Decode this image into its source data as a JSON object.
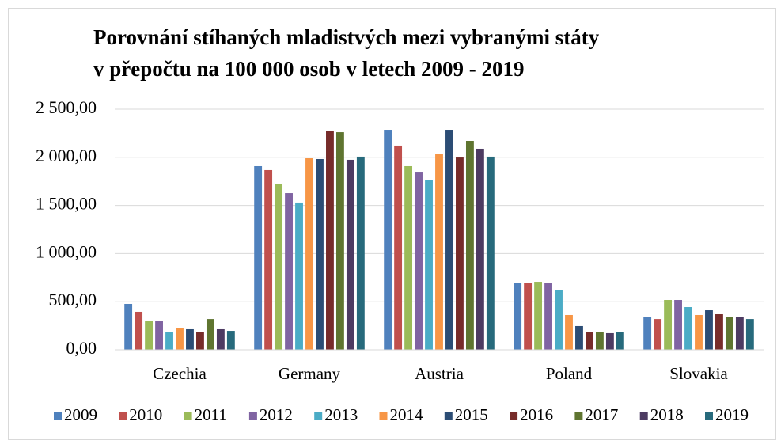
{
  "chart_data": {
    "type": "bar",
    "title": [
      "Porovnání stíhaných mladistvých mezi vybranými státy",
      "v přepočtu na 100 000 osob v letech 2009 - 2019"
    ],
    "categories": [
      "Czechia",
      "Germany",
      "Austria",
      "Poland",
      "Slovakia"
    ],
    "series": [
      {
        "name": "2009",
        "color": "#4f81bd",
        "values": [
          477,
          1908,
          2286,
          699,
          345
        ]
      },
      {
        "name": "2010",
        "color": "#c0504d",
        "values": [
          395,
          1867,
          2122,
          699,
          320
        ]
      },
      {
        "name": "2011",
        "color": "#9bbb59",
        "values": [
          296,
          1727,
          1908,
          707,
          518
        ]
      },
      {
        "name": "2012",
        "color": "#8064a2",
        "values": [
          296,
          1628,
          1850,
          691,
          518
        ]
      },
      {
        "name": "2013",
        "color": "#4bacc6",
        "values": [
          181,
          1530,
          1768,
          617,
          444
        ]
      },
      {
        "name": "2014",
        "color": "#f79646",
        "values": [
          230,
          1990,
          2039,
          362,
          362
        ]
      },
      {
        "name": "2015",
        "color": "#2c4d75",
        "values": [
          214,
          1982,
          2286,
          247,
          411
        ]
      },
      {
        "name": "2016",
        "color": "#772c2a",
        "values": [
          181,
          2278,
          1998,
          189,
          370
        ]
      },
      {
        "name": "2017",
        "color": "#5f7530",
        "values": [
          320,
          2261,
          2171,
          189,
          345
        ]
      },
      {
        "name": "2018",
        "color": "#4d3b62",
        "values": [
          214,
          1974,
          2089,
          173,
          345
        ]
      },
      {
        "name": "2019",
        "color": "#276a7c",
        "values": [
          197,
          2007,
          2007,
          189,
          320
        ]
      }
    ],
    "ylim": [
      0,
      2500
    ],
    "yticks": [
      {
        "value": 0,
        "label": "0,00"
      },
      {
        "value": 500,
        "label": "500,00"
      },
      {
        "value": 1000,
        "label": "1 000,00"
      },
      {
        "value": 1500,
        "label": "1 500,00"
      },
      {
        "value": 2000,
        "label": "2 000,00"
      },
      {
        "value": 2500,
        "label": "2 500,00"
      }
    ],
    "grid": true,
    "legend": "bottom"
  }
}
